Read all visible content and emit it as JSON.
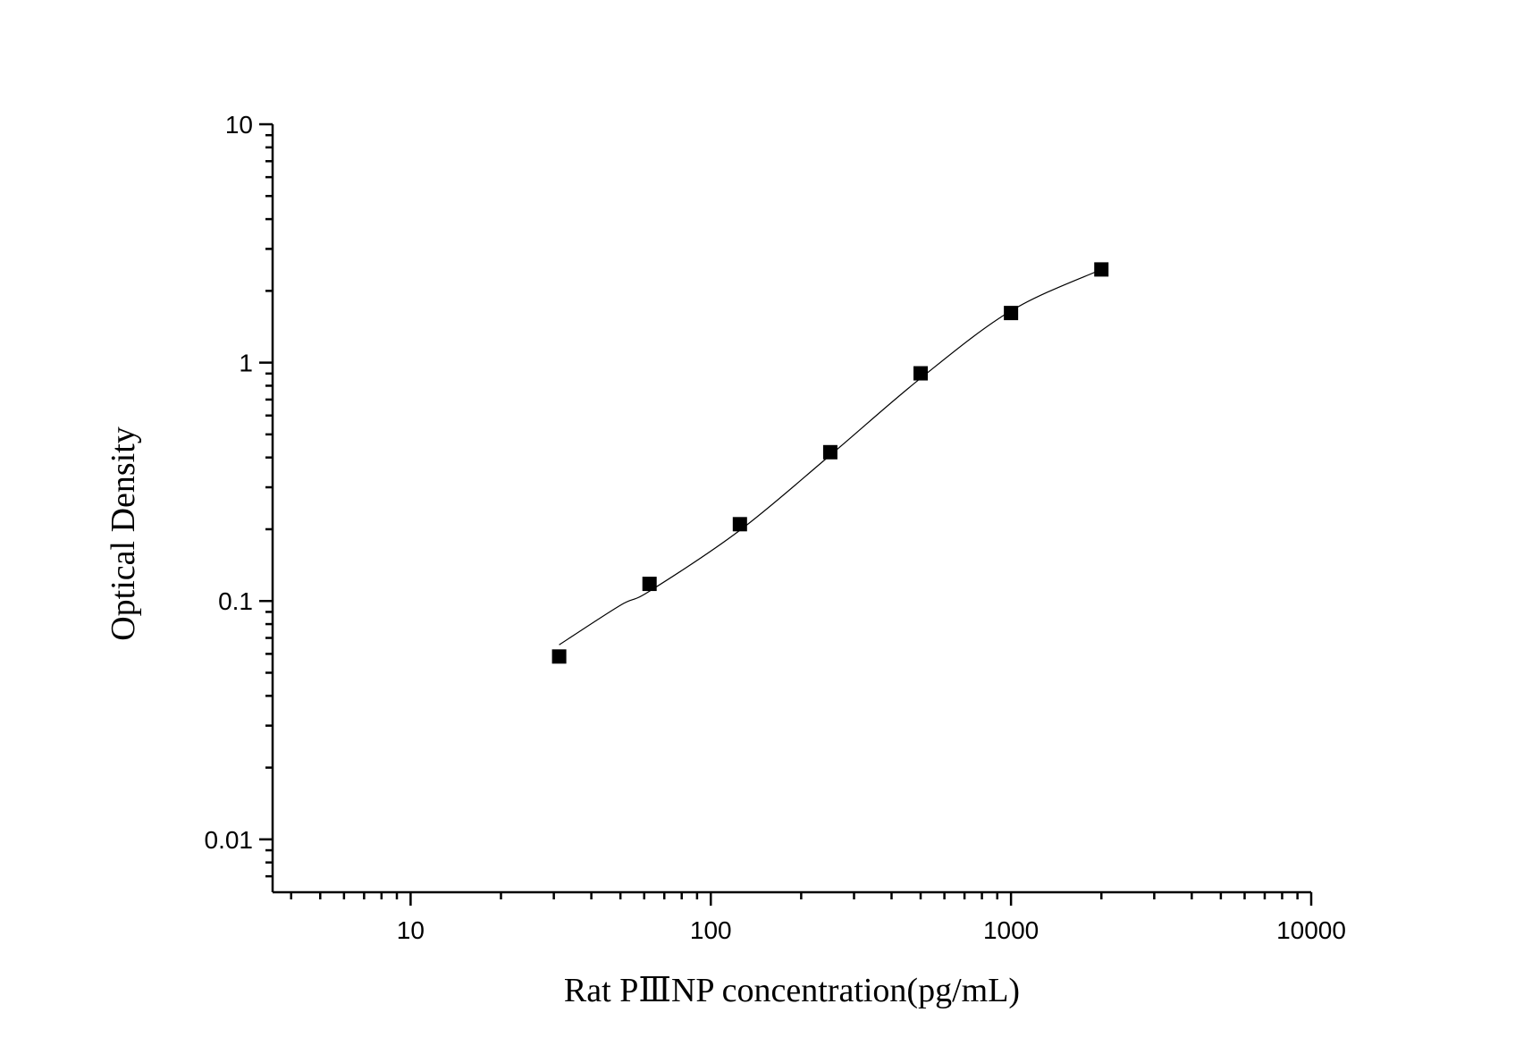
{
  "chart_data": {
    "type": "scatter",
    "x_label": "Rat PⅢNP concentration(pg/mL)",
    "y_label": "Optical Density",
    "x": [
      31.25,
      62.5,
      125,
      250,
      500,
      1000,
      2000
    ],
    "values": [
      0.0585,
      0.118,
      0.21,
      0.421,
      0.902,
      1.615,
      2.46
    ],
    "color": "#000000",
    "fit_x": [
      31.25,
      50,
      62.5,
      125,
      250,
      500,
      1000,
      2000
    ],
    "fit_values": [
      0.0655,
      0.096,
      0.11,
      0.198,
      0.409,
      0.86,
      1.65,
      2.46
    ],
    "x_log": true,
    "y_log": true,
    "xlim": [
      3.47,
      10000
    ],
    "ylim": [
      0.006,
      10
    ],
    "xticks": [
      10,
      100,
      1000,
      10000
    ],
    "yticks": [
      0.01,
      0.1,
      1,
      10
    ]
  }
}
